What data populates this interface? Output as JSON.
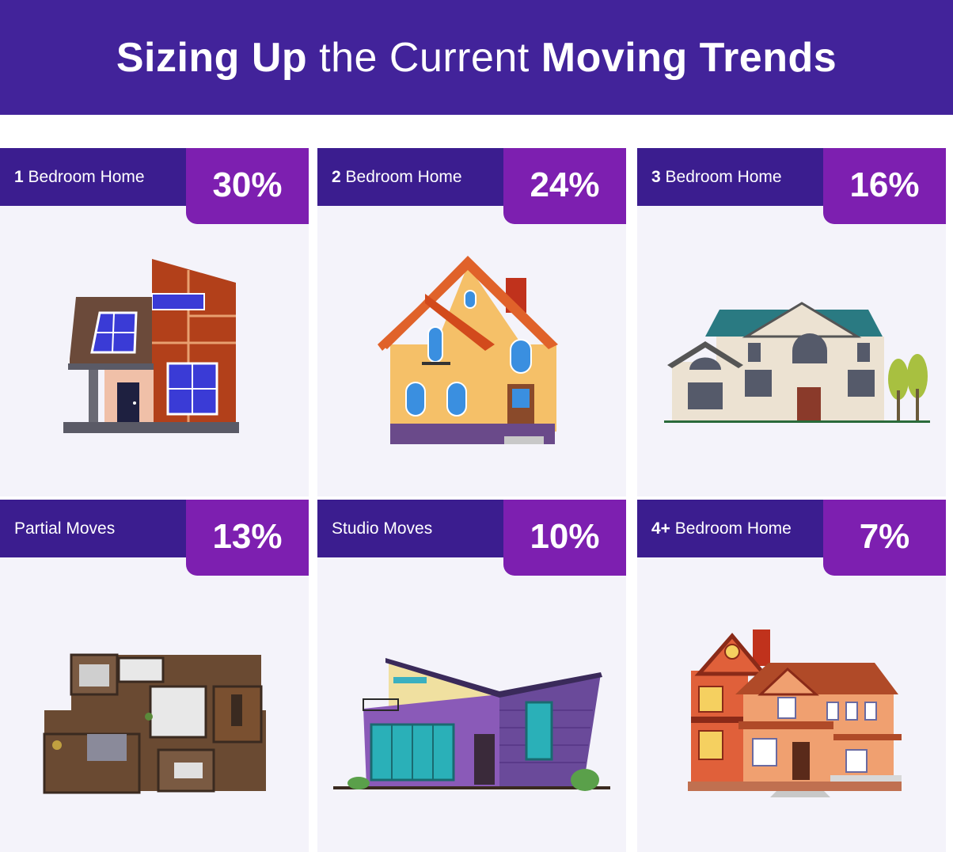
{
  "title": {
    "part1": "Sizing Up",
    "part2": "the Current",
    "part3": "Moving Trends"
  },
  "cards": [
    {
      "number": "1",
      "label": "Bedroom Home",
      "percent": "30%",
      "value": 30,
      "icon": "modern-house-icon"
    },
    {
      "number": "2",
      "label": "Bedroom Home",
      "percent": "24%",
      "value": 24,
      "icon": "yellow-house-icon"
    },
    {
      "number": "3",
      "label": "Bedroom Home",
      "percent": "16%",
      "value": 16,
      "icon": "large-house-icon"
    },
    {
      "number": "",
      "label": "Partial Moves",
      "percent": "13%",
      "value": 13,
      "icon": "floor-plan-icon"
    },
    {
      "number": "",
      "label": "Studio Moves",
      "percent": "10%",
      "value": 10,
      "icon": "studio-house-icon"
    },
    {
      "number": "4+",
      "label": "Bedroom Home",
      "percent": "7%",
      "value": 7,
      "icon": "brick-house-icon"
    }
  ],
  "colors": {
    "header": "#42239a",
    "band": "#3b1d8f",
    "badge": "#7d1fb0",
    "card": "#f4f3fa"
  }
}
